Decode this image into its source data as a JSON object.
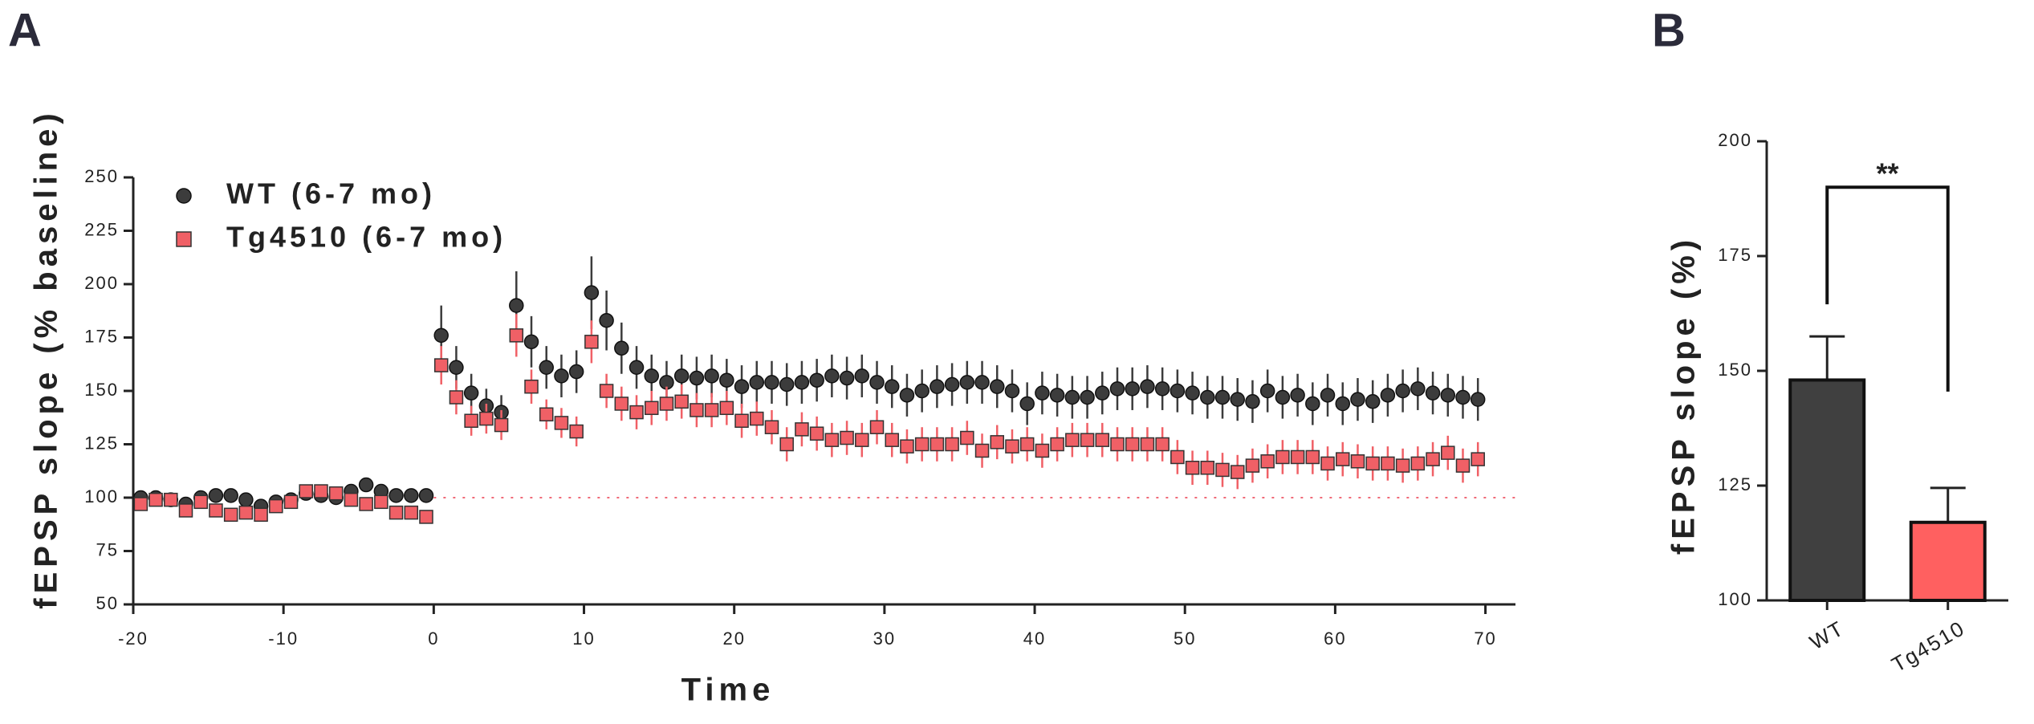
{
  "chart_data": [
    {
      "type": "scatter",
      "panel_label": "A",
      "x_label": "Time",
      "y_label": "fEPSP slope (% baseline)",
      "xlim": [
        -20,
        72
      ],
      "xticks": [
        -20,
        -10,
        0,
        10,
        20,
        30,
        40,
        50,
        60,
        70
      ],
      "ylim": [
        50,
        250
      ],
      "yticks": [
        50,
        75,
        100,
        125,
        150,
        175,
        200,
        225,
        250
      ],
      "reference_line": 100,
      "reference_color": "#f06a78",
      "legend": "upper left",
      "x": [
        -19.5,
        -18.5,
        -17.5,
        -16.5,
        -15.5,
        -14.5,
        -13.5,
        -12.5,
        -11.5,
        -10.5,
        -9.5,
        -8.5,
        -7.5,
        -6.5,
        -5.5,
        -4.5,
        -3.5,
        -2.5,
        -1.5,
        -0.5,
        0.5,
        1.5,
        2.5,
        3.5,
        4.5,
        5.5,
        6.5,
        7.5,
        8.5,
        9.5,
        10.5,
        11.5,
        12.5,
        13.5,
        14.5,
        15.5,
        16.5,
        17.5,
        18.5,
        19.5,
        20.5,
        21.5,
        22.5,
        23.5,
        24.5,
        25.5,
        26.5,
        27.5,
        28.5,
        29.5,
        30.5,
        31.5,
        32.5,
        33.5,
        34.5,
        35.5,
        36.5,
        37.5,
        38.5,
        39.5,
        40.5,
        41.5,
        42.5,
        43.5,
        44.5,
        45.5,
        46.5,
        47.5,
        48.5,
        49.5,
        50.5,
        51.5,
        52.5,
        53.5,
        54.5,
        55.5,
        56.5,
        57.5,
        58.5,
        59.5,
        60.5,
        61.5,
        62.5,
        63.5,
        64.5,
        65.5,
        66.5,
        67.5,
        68.5,
        69.5
      ],
      "series": [
        {
          "name": "WT (6-7 mo)",
          "color": "#3c3c3c",
          "marker": "circle",
          "values": [
            100,
            100,
            99,
            97,
            100,
            101,
            101,
            99,
            96,
            98,
            99,
            102,
            101,
            100,
            103,
            106,
            103,
            101,
            101,
            101,
            176,
            161,
            149,
            143,
            140,
            190,
            173,
            161,
            157,
            159,
            196,
            183,
            170,
            161,
            157,
            154,
            157,
            156,
            157,
            155,
            152,
            154,
            154,
            153,
            154,
            155,
            157,
            156,
            157,
            154,
            152,
            148,
            150,
            152,
            153,
            154,
            154,
            152,
            150,
            144,
            149,
            148,
            147,
            147,
            149,
            151,
            151,
            152,
            151,
            150,
            149,
            147,
            147,
            146,
            145,
            150,
            147,
            148,
            144,
            148,
            144,
            146,
            145,
            148,
            150,
            151,
            149,
            148,
            147,
            146
          ],
          "errors": [
            3,
            3,
            3,
            3,
            3,
            3,
            3,
            3,
            3,
            3,
            3,
            3,
            3,
            3,
            3,
            3,
            3,
            3,
            3,
            3,
            14,
            10,
            9,
            8,
            8,
            16,
            12,
            10,
            10,
            10,
            17,
            14,
            12,
            10,
            10,
            10,
            10,
            10,
            10,
            10,
            10,
            10,
            10,
            10,
            10,
            10,
            10,
            10,
            10,
            10,
            10,
            10,
            10,
            10,
            10,
            10,
            10,
            10,
            10,
            10,
            10,
            10,
            10,
            10,
            10,
            10,
            10,
            10,
            10,
            10,
            10,
            10,
            10,
            10,
            10,
            10,
            10,
            10,
            10,
            10,
            10,
            10,
            10,
            10,
            10,
            10,
            10,
            10,
            10,
            10
          ]
        },
        {
          "name": "Tg4510 (6-7 mo)",
          "color": "#f06066",
          "marker": "square",
          "values": [
            97,
            99,
            99,
            94,
            98,
            94,
            92,
            93,
            92,
            96,
            98,
            103,
            103,
            102,
            99,
            97,
            98,
            93,
            93,
            91,
            162,
            147,
            136,
            137,
            134,
            176,
            152,
            139,
            135,
            131,
            173,
            150,
            144,
            140,
            142,
            144,
            145,
            141,
            141,
            142,
            136,
            137,
            133,
            125,
            132,
            130,
            127,
            128,
            127,
            133,
            127,
            124,
            125,
            125,
            125,
            128,
            122,
            126,
            124,
            125,
            122,
            125,
            127,
            127,
            127,
            125,
            125,
            125,
            125,
            119,
            114,
            114,
            113,
            112,
            115,
            117,
            119,
            119,
            119,
            116,
            118,
            117,
            116,
            116,
            115,
            116,
            118,
            121,
            115,
            118
          ],
          "errors": [
            3,
            3,
            3,
            3,
            3,
            3,
            3,
            3,
            3,
            3,
            3,
            3,
            3,
            3,
            3,
            3,
            3,
            3,
            3,
            3,
            9,
            8,
            7,
            7,
            7,
            10,
            8,
            7,
            7,
            7,
            10,
            8,
            8,
            8,
            8,
            8,
            8,
            8,
            8,
            8,
            8,
            8,
            8,
            8,
            8,
            8,
            8,
            8,
            8,
            8,
            8,
            8,
            8,
            8,
            8,
            8,
            8,
            8,
            8,
            8,
            8,
            8,
            8,
            8,
            8,
            8,
            8,
            8,
            8,
            8,
            8,
            8,
            8,
            8,
            8,
            8,
            8,
            8,
            8,
            8,
            8,
            8,
            8,
            8,
            8,
            8,
            8,
            8,
            8,
            8
          ]
        }
      ]
    },
    {
      "type": "bar",
      "panel_label": "B",
      "y_label": "fEPSP slope (%)",
      "categories": [
        "WT",
        "Tg4510"
      ],
      "values": [
        148,
        117
      ],
      "errors": [
        9.5,
        7.5
      ],
      "colors": [
        "#404040",
        "#ff6060"
      ],
      "ylim": [
        100,
        200
      ],
      "yticks": [
        100,
        125,
        150,
        175,
        200
      ],
      "significance": {
        "label": "**",
        "y": 190
      }
    }
  ]
}
